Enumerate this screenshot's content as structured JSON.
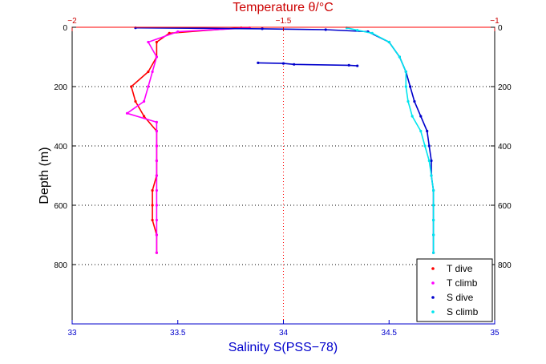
{
  "chart_data": {
    "type": "scatter",
    "title": "",
    "x_bottom": {
      "label": "Salinity S(PSS−78)",
      "range": [
        33,
        35
      ],
      "ticks": [
        33,
        33.5,
        34,
        34.5,
        35
      ],
      "tick_labels": [
        "33",
        "33.5",
        "34",
        "34.5",
        "35"
      ],
      "color": "#0000cc"
    },
    "x_top": {
      "label": "Temperature θ/°C",
      "range": [
        -2,
        -1
      ],
      "ticks": [
        -2,
        -1.5,
        -1
      ],
      "tick_labels": [
        "−2",
        "−1.5",
        "−1"
      ],
      "color": "#cc0000"
    },
    "y": {
      "label": "Depth (m)",
      "range": [
        0,
        1000
      ],
      "reversed": true,
      "ticks": [
        0,
        200,
        400,
        600,
        800
      ],
      "tick_labels": [
        "0",
        "200",
        "400",
        "600",
        "800"
      ]
    },
    "grid": {
      "horizontal": true,
      "vertical_at_salinity": 34
    },
    "legend": {
      "placement": "bottom-right",
      "entries": [
        {
          "label": "T dive",
          "color": "#ff0000"
        },
        {
          "label": "T climb",
          "color": "#ff00ff"
        },
        {
          "label": "S dive",
          "color": "#0000cc"
        },
        {
          "label": "S climb",
          "color": "#00e5ee"
        }
      ]
    },
    "series": [
      {
        "name": "T dive",
        "axis": "temperature",
        "color": "#ff0000",
        "points": [
          [
            -1.6,
            2
          ],
          [
            -1.77,
            20
          ],
          [
            -1.8,
            50
          ],
          [
            -1.8,
            100
          ],
          [
            -1.82,
            150
          ],
          [
            -1.86,
            200
          ],
          [
            -1.85,
            250
          ],
          [
            -1.83,
            300
          ],
          [
            -1.8,
            350
          ],
          [
            -1.8,
            400
          ],
          [
            -1.8,
            450
          ],
          [
            -1.8,
            500
          ],
          [
            -1.81,
            550
          ],
          [
            -1.81,
            600
          ],
          [
            -1.81,
            650
          ],
          [
            -1.8,
            700
          ],
          [
            -1.8,
            760
          ]
        ]
      },
      {
        "name": "T climb",
        "axis": "temperature",
        "color": "#ff00ff",
        "points": [
          [
            -1.58,
            2
          ],
          [
            -1.75,
            15
          ],
          [
            -1.82,
            50
          ],
          [
            -1.8,
            100
          ],
          [
            -1.81,
            150
          ],
          [
            -1.82,
            200
          ],
          [
            -1.83,
            250
          ],
          [
            -1.87,
            290
          ],
          [
            -1.8,
            320
          ],
          [
            -1.8,
            350
          ],
          [
            -1.8,
            400
          ],
          [
            -1.8,
            450
          ],
          [
            -1.8,
            500
          ],
          [
            -1.8,
            550
          ],
          [
            -1.8,
            600
          ],
          [
            -1.8,
            650
          ],
          [
            -1.8,
            700
          ],
          [
            -1.8,
            760
          ]
        ]
      },
      {
        "name": "S dive",
        "axis": "salinity",
        "color": "#0000cc",
        "points": [
          [
            33.3,
            2
          ],
          [
            33.9,
            5
          ],
          [
            34.2,
            8
          ],
          [
            34.4,
            15
          ],
          [
            34.5,
            50
          ],
          [
            34.55,
            100
          ],
          [
            34.58,
            150
          ],
          [
            34.6,
            200
          ],
          [
            34.62,
            250
          ],
          [
            34.65,
            300
          ],
          [
            34.68,
            350
          ],
          [
            34.69,
            400
          ],
          [
            34.7,
            450
          ],
          [
            34.7,
            500
          ],
          [
            34.71,
            550
          ],
          [
            34.71,
            600
          ],
          [
            34.71,
            650
          ],
          [
            34.71,
            700
          ],
          [
            34.71,
            760
          ]
        ]
      },
      {
        "name": "S climb",
        "axis": "salinity",
        "color": "#00e5ee",
        "points": [
          [
            34.3,
            2
          ],
          [
            34.35,
            10
          ],
          [
            34.42,
            20
          ],
          [
            34.5,
            50
          ],
          [
            34.55,
            100
          ],
          [
            34.58,
            150
          ],
          [
            34.58,
            200
          ],
          [
            34.59,
            250
          ],
          [
            34.61,
            300
          ],
          [
            34.65,
            350
          ],
          [
            34.67,
            400
          ],
          [
            34.69,
            450
          ],
          [
            34.7,
            500
          ],
          [
            34.71,
            550
          ],
          [
            34.71,
            600
          ],
          [
            34.71,
            650
          ],
          [
            34.71,
            700
          ],
          [
            34.71,
            760
          ]
        ]
      },
      {
        "name": "S dive",
        "axis": "salinity",
        "color": "#0000cc",
        "points": [
          [
            33.88,
            120
          ],
          [
            34.0,
            122
          ],
          [
            34.05,
            125
          ],
          [
            34.31,
            128
          ],
          [
            34.35,
            130
          ]
        ]
      }
    ]
  }
}
